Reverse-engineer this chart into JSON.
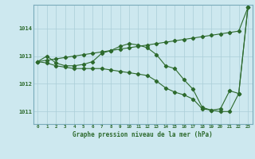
{
  "title": "Graphe pression niveau de la mer (hPa)",
  "bg_color": "#cde8ef",
  "grid_color": "#aacdd8",
  "line_color": "#2d6a2d",
  "x_hours": [
    0,
    1,
    2,
    3,
    4,
    5,
    6,
    7,
    8,
    9,
    10,
    11,
    12,
    13,
    14,
    15,
    16,
    17,
    18,
    19,
    20,
    21,
    22,
    23
  ],
  "line_top": [
    1012.8,
    1012.85,
    1012.9,
    1012.95,
    1013.0,
    1013.05,
    1013.1,
    1013.15,
    1013.2,
    1013.25,
    1013.3,
    1013.35,
    1013.4,
    1013.45,
    1013.5,
    1013.55,
    1013.6,
    1013.65,
    1013.7,
    1013.75,
    1013.8,
    1013.85,
    1013.9,
    1014.75
  ],
  "line_mid": [
    1012.8,
    1013.0,
    1012.75,
    1012.65,
    1012.65,
    1012.7,
    1012.8,
    1013.1,
    1013.2,
    1013.35,
    1013.45,
    1013.4,
    1013.3,
    1013.05,
    1012.65,
    1012.55,
    1012.15,
    1011.8,
    1011.15,
    1011.05,
    1011.1,
    1011.75,
    1011.65,
    1014.75
  ],
  "line_bot": [
    1012.8,
    1012.75,
    1012.65,
    1012.6,
    1012.55,
    1012.55,
    1012.55,
    1012.55,
    1012.5,
    1012.45,
    1012.4,
    1012.35,
    1012.3,
    1012.1,
    1011.85,
    1011.7,
    1011.6,
    1011.45,
    1011.1,
    1011.05,
    1011.0,
    1011.0,
    1011.65,
    1014.75
  ],
  "ylim": [
    1010.55,
    1014.85
  ],
  "yticks": [
    1011,
    1012,
    1013,
    1014
  ],
  "xticks": [
    0,
    1,
    2,
    3,
    4,
    5,
    6,
    7,
    8,
    9,
    10,
    11,
    12,
    13,
    14,
    15,
    16,
    17,
    18,
    19,
    20,
    21,
    22,
    23
  ]
}
